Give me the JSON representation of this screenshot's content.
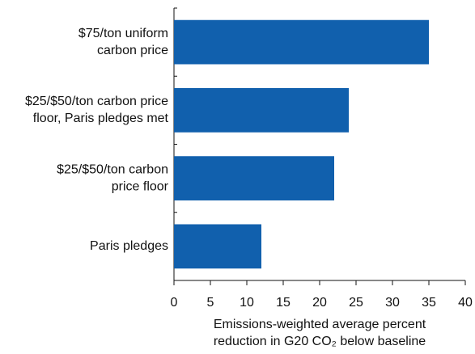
{
  "chart_data": {
    "type": "barh",
    "categories": [
      [
        "$75/ton uniform",
        "carbon price"
      ],
      [
        "$25/$50/ton carbon price",
        "floor, Paris pledges met"
      ],
      [
        "$25/$50/ton carbon",
        "price floor"
      ],
      [
        "Paris pledges"
      ]
    ],
    "values": [
      35,
      24,
      22,
      12
    ],
    "color": "#1160ad",
    "xlim": [
      0,
      40
    ],
    "xticks": [
      0,
      5,
      10,
      15,
      20,
      25,
      30,
      35,
      40
    ],
    "x_label": [
      "Emissions-weighted average percent",
      "reduction in G20 CO₂ below baseline"
    ]
  }
}
